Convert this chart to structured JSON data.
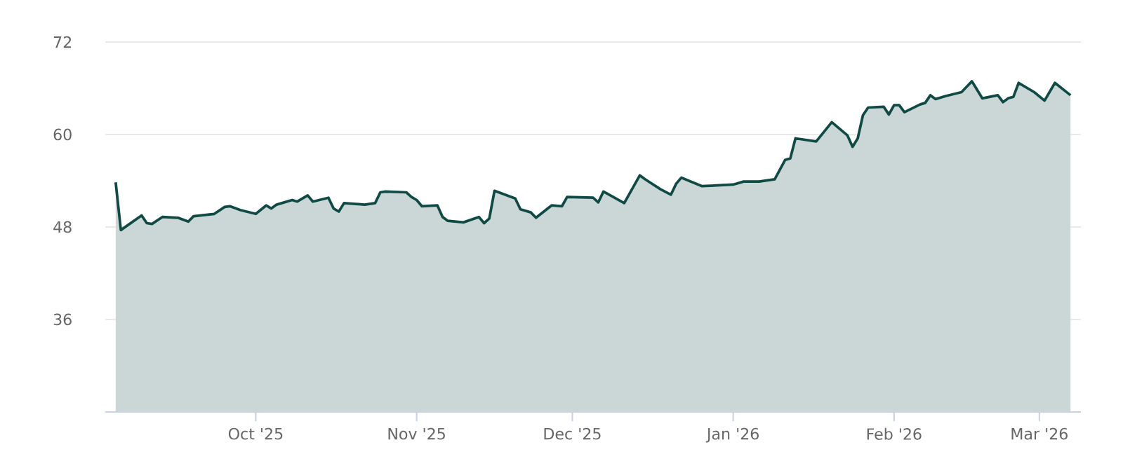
{
  "chart_data": {
    "type": "area",
    "xlim": [
      "2025-09-02",
      "2026-03-09"
    ],
    "ylim": [
      24,
      72
    ],
    "yticks": [
      36,
      48,
      60,
      72
    ],
    "grid": "y",
    "marker": "none",
    "line_style": "solid",
    "xticks": [
      {
        "value": "2025-10-01",
        "label": "Oct '25"
      },
      {
        "value": "2025-11-01",
        "label": "Nov '25"
      },
      {
        "value": "2025-12-01",
        "label": "Dec '25"
      },
      {
        "value": "2026-01-01",
        "label": "Jan '26"
      },
      {
        "value": "2026-02-01",
        "label": "Feb '26"
      },
      {
        "value": "2026-03-01",
        "label": "Mar '26"
      }
    ],
    "x": [
      "2025-09-04",
      "2025-09-05",
      "2025-09-09",
      "2025-09-10",
      "2025-09-11",
      "2025-09-13",
      "2025-09-16",
      "2025-09-18",
      "2025-09-19",
      "2025-09-23",
      "2025-09-25",
      "2025-09-26",
      "2025-09-28",
      "2025-10-01",
      "2025-10-03",
      "2025-10-04",
      "2025-10-05",
      "2025-10-08",
      "2025-10-09",
      "2025-10-11",
      "2025-10-12",
      "2025-10-15",
      "2025-10-16",
      "2025-10-17",
      "2025-10-18",
      "2025-10-22",
      "2025-10-24",
      "2025-10-25",
      "2025-10-26",
      "2025-10-30",
      "2025-10-31",
      "2025-11-01",
      "2025-11-02",
      "2025-11-05",
      "2025-11-06",
      "2025-11-07",
      "2025-11-10",
      "2025-11-13",
      "2025-11-14",
      "2025-11-15",
      "2025-11-16",
      "2025-11-20",
      "2025-11-21",
      "2025-11-23",
      "2025-11-24",
      "2025-11-27",
      "2025-11-29",
      "2025-11-30",
      "2025-12-05",
      "2025-12-06",
      "2025-12-07",
      "2025-12-11",
      "2025-12-14",
      "2025-12-15",
      "2025-12-18",
      "2025-12-20",
      "2025-12-21",
      "2025-12-22",
      "2025-12-26",
      "2026-01-01",
      "2026-01-03",
      "2026-01-06",
      "2026-01-09",
      "2026-01-11",
      "2026-01-12",
      "2026-01-13",
      "2026-01-17",
      "2026-01-20",
      "2026-01-23",
      "2026-01-24",
      "2026-01-25",
      "2026-01-26",
      "2026-01-27",
      "2026-01-30",
      "2026-01-31",
      "2026-02-01",
      "2026-02-02",
      "2026-02-03",
      "2026-02-06",
      "2026-02-07",
      "2026-02-08",
      "2026-02-09",
      "2026-02-11",
      "2026-02-14",
      "2026-02-15",
      "2026-02-16",
      "2026-02-18",
      "2026-02-21",
      "2026-02-22",
      "2026-02-23",
      "2026-02-24",
      "2026-02-25",
      "2026-02-28",
      "2026-03-02",
      "2026-03-04",
      "2026-03-07"
    ],
    "series": [
      {
        "color": "#0f4a45",
        "values": [
          53.8,
          47.6,
          49.5,
          48.5,
          48.4,
          49.3,
          49.2,
          48.7,
          49.4,
          49.7,
          50.6,
          50.7,
          50.2,
          49.7,
          50.8,
          50.4,
          50.9,
          51.5,
          51.3,
          52.1,
          51.3,
          51.8,
          50.4,
          50.0,
          51.1,
          50.9,
          51.1,
          52.5,
          52.6,
          52.5,
          51.9,
          51.5,
          50.7,
          50.8,
          49.3,
          48.8,
          48.6,
          49.3,
          48.5,
          49.1,
          52.7,
          51.7,
          50.3,
          49.9,
          49.2,
          50.8,
          50.7,
          51.9,
          51.8,
          51.2,
          52.6,
          51.1,
          54.7,
          54.2,
          52.9,
          52.2,
          53.6,
          54.4,
          53.3,
          53.5,
          53.9,
          53.9,
          54.2,
          56.7,
          56.9,
          59.5,
          59.1,
          61.6,
          59.9,
          58.4,
          59.5,
          62.5,
          63.5,
          63.6,
          62.6,
          63.8,
          63.8,
          62.9,
          63.9,
          64.1,
          65.1,
          64.6,
          65.0,
          65.5,
          66.2,
          66.9,
          64.7,
          65.1,
          64.2,
          64.7,
          64.9,
          66.7,
          65.5,
          64.4,
          66.7,
          65.1
        ]
      }
    ]
  }
}
